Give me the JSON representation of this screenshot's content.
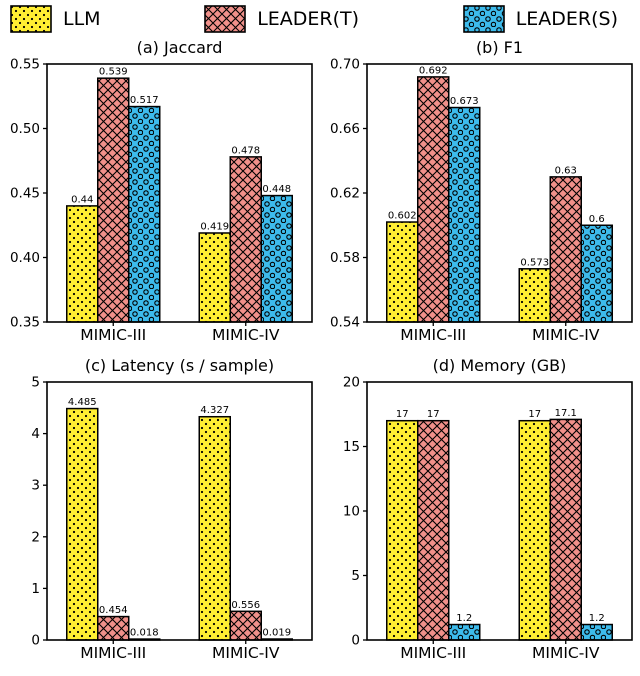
{
  "figure": {
    "background": "#ffffff",
    "text_color": "#000000"
  },
  "legend": {
    "position": "figure-top",
    "items": [
      {
        "label": "LLM",
        "color": "#ffee33",
        "pattern": "dots-pattern",
        "edge_color": "#000000"
      },
      {
        "label": "LEADER(T)",
        "color": "#f0908a",
        "pattern": "crosshatch-pattern",
        "edge_color": "#000000"
      },
      {
        "label": "LEADER(S)",
        "color": "#3dbbec",
        "pattern": "circles-pattern",
        "edge_color": "#000000"
      }
    ]
  },
  "chart_data": [
    {
      "type": "bar",
      "title": "(a) Jaccard",
      "categories": [
        "MIMIC-III",
        "MIMIC-IV"
      ],
      "series": [
        {
          "name": "LLM",
          "values": [
            0.44,
            0.419
          ],
          "labels": [
            "0.44",
            "0.419"
          ]
        },
        {
          "name": "LEADER(T)",
          "values": [
            0.539,
            0.478
          ],
          "labels": [
            "0.539",
            "0.478"
          ]
        },
        {
          "name": "LEADER(S)",
          "values": [
            0.517,
            0.448
          ],
          "labels": [
            "0.517",
            "0.448"
          ]
        }
      ],
      "ylim": [
        0.35,
        0.55
      ],
      "yticks": [
        0.35,
        0.4,
        0.45,
        0.5,
        0.55
      ],
      "ytick_labels": [
        "0.35",
        "0.40",
        "0.45",
        "0.50",
        "0.55"
      ],
      "xlabel": "",
      "ylabel": "",
      "grid": false
    },
    {
      "type": "bar",
      "title": "(b) F1",
      "categories": [
        "MIMIC-III",
        "MIMIC-IV"
      ],
      "series": [
        {
          "name": "LLM",
          "values": [
            0.602,
            0.573
          ],
          "labels": [
            "0.602",
            "0.573"
          ]
        },
        {
          "name": "LEADER(T)",
          "values": [
            0.692,
            0.63
          ],
          "labels": [
            "0.692",
            "0.63"
          ]
        },
        {
          "name": "LEADER(S)",
          "values": [
            0.673,
            0.6
          ],
          "labels": [
            "0.673",
            "0.6"
          ]
        }
      ],
      "ylim": [
        0.54,
        0.7
      ],
      "yticks": [
        0.54,
        0.58,
        0.62,
        0.66,
        0.7
      ],
      "ytick_labels": [
        "0.54",
        "0.58",
        "0.62",
        "0.66",
        "0.70"
      ],
      "xlabel": "",
      "ylabel": "",
      "grid": false
    },
    {
      "type": "bar",
      "title": "(c) Latency (s / sample)",
      "categories": [
        "MIMIC-III",
        "MIMIC-IV"
      ],
      "series": [
        {
          "name": "LLM",
          "values": [
            4.485,
            4.327
          ],
          "labels": [
            "4.485",
            "4.327"
          ]
        },
        {
          "name": "LEADER(T)",
          "values": [
            0.454,
            0.556
          ],
          "labels": [
            "0.454",
            "0.556"
          ]
        },
        {
          "name": "LEADER(S)",
          "values": [
            0.018,
            0.019
          ],
          "labels": [
            "0.018",
            "0.019"
          ]
        }
      ],
      "ylim": [
        0,
        5
      ],
      "yticks": [
        0,
        1,
        2,
        3,
        4,
        5
      ],
      "ytick_labels": [
        "0",
        "1",
        "2",
        "3",
        "4",
        "5"
      ],
      "xlabel": "",
      "ylabel": "",
      "grid": false
    },
    {
      "type": "bar",
      "title": "(d) Memory (GB)",
      "categories": [
        "MIMIC-III",
        "MIMIC-IV"
      ],
      "series": [
        {
          "name": "LLM",
          "values": [
            17,
            17
          ],
          "labels": [
            "17",
            "17"
          ]
        },
        {
          "name": "LEADER(T)",
          "values": [
            17,
            17.1
          ],
          "labels": [
            "17",
            "17.1"
          ]
        },
        {
          "name": "LEADER(S)",
          "values": [
            1.2,
            1.2
          ],
          "labels": [
            "1.2",
            "1.2"
          ]
        }
      ],
      "ylim": [
        0,
        20
      ],
      "yticks": [
        0,
        5,
        10,
        15,
        20
      ],
      "ytick_labels": [
        "0",
        "5",
        "10",
        "15",
        "20"
      ],
      "xlabel": "",
      "ylabel": "",
      "grid": false
    }
  ]
}
